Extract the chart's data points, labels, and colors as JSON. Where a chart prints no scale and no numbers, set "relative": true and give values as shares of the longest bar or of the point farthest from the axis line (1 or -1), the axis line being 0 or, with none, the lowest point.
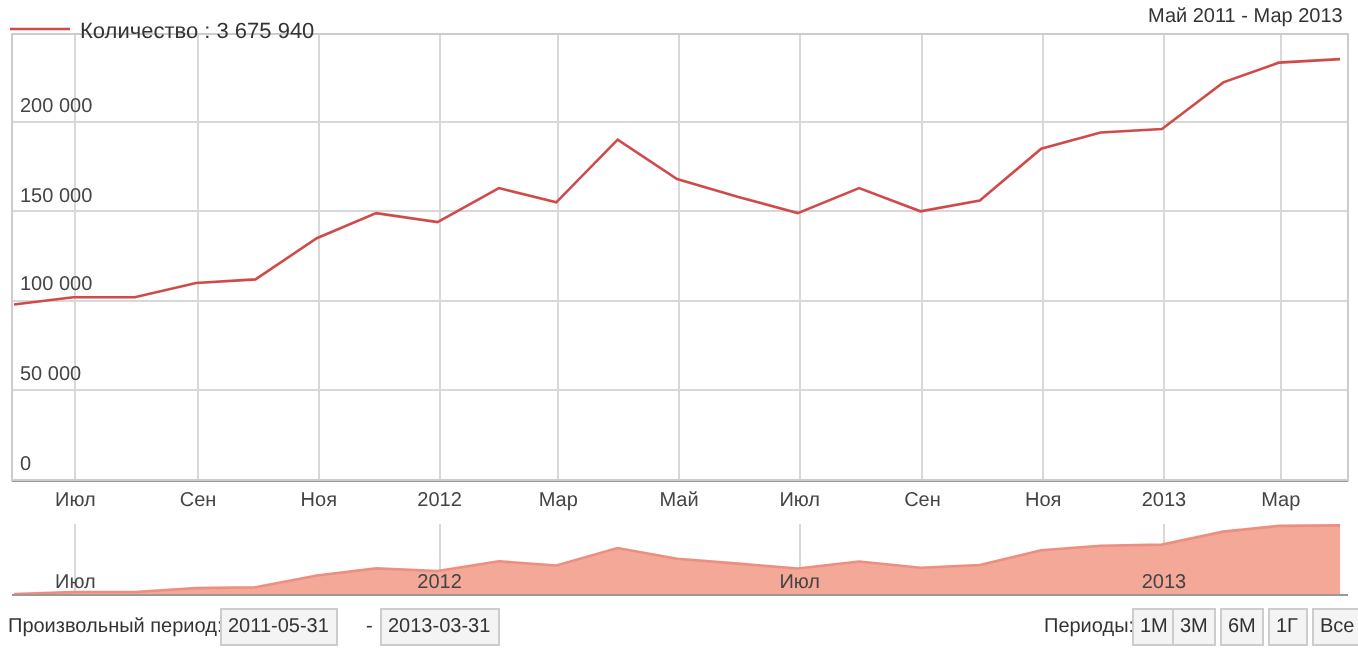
{
  "chart_data": [
    {
      "type": "line",
      "subtitle": "Май 2011 - Мар 2013",
      "x": [
        "2011-05-31",
        "2011-06-30",
        "2011-07-31",
        "2011-08-31",
        "2011-09-30",
        "2011-10-31",
        "2011-11-30",
        "2011-12-31",
        "2012-01-31",
        "2012-02-29",
        "2012-03-31",
        "2012-04-30",
        "2012-05-31",
        "2012-06-30",
        "2012-07-31",
        "2012-08-31",
        "2012-09-30",
        "2012-10-31",
        "2012-11-30",
        "2012-12-31",
        "2013-01-31",
        "2013-02-28",
        "2013-03-31"
      ],
      "series": [
        {
          "name": "Количество : 3 675 940",
          "color": "#d04a4a",
          "values": [
            98000,
            102000,
            102000,
            110000,
            112000,
            135000,
            149000,
            144000,
            163000,
            155000,
            190000,
            168000,
            158000,
            149000,
            163000,
            150000,
            156000,
            185000,
            194000,
            196000,
            222000,
            233000,
            235000
          ]
        }
      ],
      "xlim": [
        "2011-05-30",
        "2013-04-04"
      ],
      "xticks": [
        {
          "value": "2011-07-01",
          "label": "Июл"
        },
        {
          "value": "2011-09-01",
          "label": "Сен"
        },
        {
          "value": "2011-11-01",
          "label": "Ноя"
        },
        {
          "value": "2012-01-01",
          "label": "2012"
        },
        {
          "value": "2012-03-01",
          "label": "Мар"
        },
        {
          "value": "2012-05-01",
          "label": "Май"
        },
        {
          "value": "2012-07-01",
          "label": "Июл"
        },
        {
          "value": "2012-09-01",
          "label": "Сен"
        },
        {
          "value": "2012-11-01",
          "label": "Ноя"
        },
        {
          "value": "2013-01-01",
          "label": "2013"
        },
        {
          "value": "2013-03-01",
          "label": "Мар"
        }
      ],
      "ylim": [
        0,
        249000
      ],
      "yticks": [
        {
          "value": 0,
          "label": "0"
        },
        {
          "value": 50000,
          "label": "50 000"
        },
        {
          "value": 100000,
          "label": "100 000"
        },
        {
          "value": 150000,
          "label": "150 000"
        },
        {
          "value": 200000,
          "label": "200 000"
        }
      ],
      "grid": true,
      "legend": "top left",
      "marker": "none",
      "line_style": "solid"
    },
    {
      "type": "area",
      "relative": true,
      "x": [
        "2011-05-31",
        "2011-06-30",
        "2011-07-31",
        "2011-08-31",
        "2011-09-30",
        "2011-10-31",
        "2011-11-30",
        "2011-12-31",
        "2012-01-31",
        "2012-02-29",
        "2012-03-31",
        "2012-04-30",
        "2012-05-31",
        "2012-06-30",
        "2012-07-31",
        "2012-08-31",
        "2012-09-30",
        "2012-10-31",
        "2012-11-30",
        "2012-12-31",
        "2013-01-31",
        "2013-02-28",
        "2013-03-31"
      ],
      "series": [
        {
          "color": "#f4a898",
          "values": [
            0,
            0.029,
            0.029,
            0.086,
            0.099,
            0.27,
            0.374,
            0.336,
            0.476,
            0.415,
            0.67,
            0.514,
            0.442,
            0.371,
            0.473,
            0.382,
            0.423,
            0.637,
            0.703,
            0.72,
            0.909,
            0.992,
            1
          ]
        }
      ],
      "xlim": [
        "2011-05-30",
        "2013-04-04"
      ],
      "xticks": [
        {
          "value": "2011-07-01",
          "label": "Июл"
        },
        {
          "value": "2012-01-01",
          "label": "2012"
        },
        {
          "value": "2012-07-01",
          "label": "Июл"
        },
        {
          "value": "2013-01-01",
          "label": "2013"
        }
      ],
      "tick_labels": "x",
      "grid": "x"
    },
    {
      "type": "other",
      "annotations": [
        "Произвольный период:",
        "2011-05-31",
        "-",
        "2013-03-31",
        "Периоды:",
        "1М",
        "3М",
        "6М",
        "1Г",
        "Все"
      ]
    }
  ]
}
